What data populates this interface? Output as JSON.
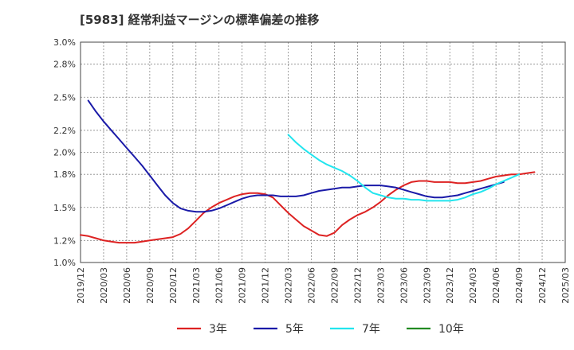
{
  "chart_data": {
    "type": "line",
    "title": "[5983]  経常利益マージンの標準偏差の推移",
    "xlabel": "",
    "ylabel": "",
    "ylim": [
      1.0,
      3.0
    ],
    "y_ticks": [
      "3.0%",
      "2.8%",
      "2.5%",
      "2.2%",
      "2.0%",
      "1.8%",
      "1.5%",
      "1.2%",
      "1.0%"
    ],
    "y_tick_values": [
      3.0,
      2.8,
      2.5,
      2.2,
      2.0,
      1.8,
      1.5,
      1.2,
      1.0
    ],
    "x_ticks": [
      "2019/12",
      "2020/03",
      "2020/06",
      "2020/09",
      "2020/12",
      "2021/03",
      "2021/06",
      "2021/09",
      "2021/12",
      "2022/03",
      "2022/06",
      "2022/09",
      "2022/12",
      "2023/03",
      "2023/06",
      "2023/09",
      "2023/12",
      "2024/03",
      "2024/06",
      "2024/09",
      "2024/12",
      "2025/03"
    ],
    "grid": true,
    "legend_position": "bottom",
    "series": [
      {
        "name": "3年",
        "color": "#dd2222",
        "start_index": 0,
        "values": [
          1.25,
          1.24,
          1.22,
          1.2,
          1.19,
          1.18,
          1.18,
          1.18,
          1.19,
          1.2,
          1.21,
          1.22,
          1.23,
          1.26,
          1.31,
          1.38,
          1.45,
          1.5,
          1.54,
          1.57,
          1.6,
          1.62,
          1.63,
          1.63,
          1.62,
          1.59,
          1.52,
          1.45,
          1.39,
          1.33,
          1.29,
          1.25,
          1.24,
          1.27,
          1.34,
          1.39,
          1.43,
          1.46,
          1.5,
          1.55,
          1.61,
          1.66,
          1.7,
          1.73,
          1.74,
          1.74,
          1.73,
          1.73,
          1.73,
          1.72,
          1.72,
          1.73,
          1.74,
          1.76,
          1.78,
          1.79,
          1.8,
          1.8,
          1.81,
          1.82
        ]
      },
      {
        "name": "5年",
        "color": "#1a1aa8",
        "start_index": 1,
        "values": [
          2.47,
          2.37,
          2.28,
          2.2,
          2.12,
          2.04,
          1.96,
          1.88,
          1.79,
          1.7,
          1.61,
          1.54,
          1.49,
          1.47,
          1.46,
          1.46,
          1.47,
          1.49,
          1.52,
          1.55,
          1.58,
          1.6,
          1.61,
          1.61,
          1.61,
          1.6,
          1.6,
          1.6,
          1.61,
          1.63,
          1.65,
          1.66,
          1.67,
          1.68,
          1.68,
          1.69,
          1.7,
          1.7,
          1.7,
          1.69,
          1.68,
          1.66,
          1.64,
          1.62,
          1.6,
          1.59,
          1.59,
          1.6,
          1.61,
          1.63,
          1.65,
          1.67,
          1.69,
          1.71,
          1.73
        ]
      },
      {
        "name": "7年",
        "color": "#22e5ee",
        "start_index": 27,
        "values": [
          2.16,
          2.09,
          2.03,
          1.98,
          1.93,
          1.89,
          1.86,
          1.83,
          1.79,
          1.74,
          1.68,
          1.63,
          1.61,
          1.59,
          1.58,
          1.58,
          1.57,
          1.57,
          1.56,
          1.56,
          1.56,
          1.56,
          1.57,
          1.59,
          1.62,
          1.64,
          1.67,
          1.71,
          1.74,
          1.77,
          1.8
        ]
      },
      {
        "name": "10年",
        "color": "#228b22",
        "start_index": 0,
        "values": []
      }
    ]
  }
}
